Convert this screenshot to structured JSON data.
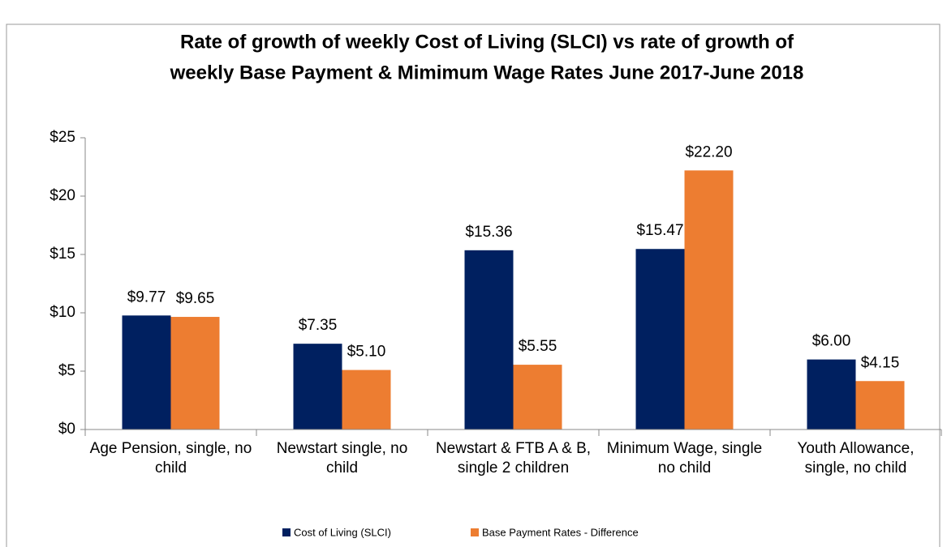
{
  "chart_data": {
    "type": "bar",
    "title": [
      "Rate of growth of weekly Cost of Living (SLCI) vs rate of growth of",
      "weekly Base Payment & Mimimum Wage Rates June 2017-June 2018"
    ],
    "categories": [
      "Age Pension, single, no child",
      "Newstart single, no child",
      "Newstart & FTB A & B,  single 2 children",
      "Minimum Wage, single no child",
      "Youth Allowance, single, no child"
    ],
    "series": [
      {
        "name": "Cost of Living (SLCI)",
        "color": "#002060",
        "values": [
          9.77,
          7.35,
          15.36,
          15.47,
          6.0
        ],
        "value_labels": [
          "$9.77",
          "$7.35",
          "$15.36",
          "$15.47",
          "$6.00"
        ]
      },
      {
        "name": "Base Payment Rates - Difference",
        "color": "#ed7d31",
        "values": [
          9.65,
          5.1,
          5.55,
          22.2,
          4.15
        ],
        "value_labels": [
          "$9.65",
          "$5.10",
          "$5.55",
          "$22.20",
          "$4.15"
        ]
      }
    ],
    "ylim": [
      0,
      25
    ],
    "yticks": [
      {
        "value": 0,
        "label": "$0"
      },
      {
        "value": 5,
        "label": "$5"
      },
      {
        "value": 10,
        "label": "$10"
      },
      {
        "value": 15,
        "label": "$15"
      },
      {
        "value": 20,
        "label": "$20"
      },
      {
        "value": 25,
        "label": "$25"
      }
    ],
    "grid": false,
    "legend": "bottom"
  }
}
